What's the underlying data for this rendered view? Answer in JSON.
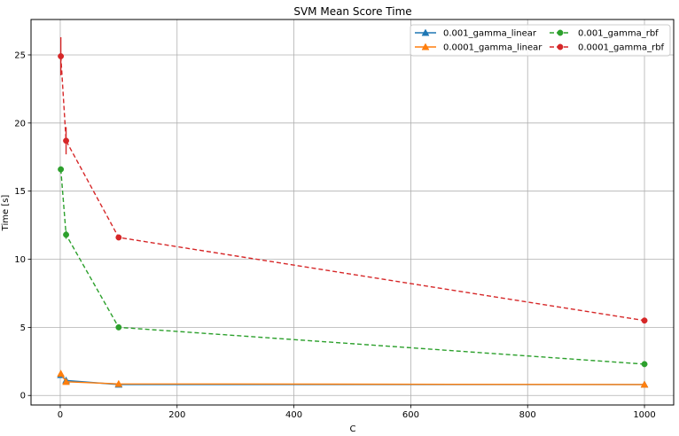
{
  "chart_data": {
    "type": "line",
    "title": "SVM Mean Score Time",
    "xlabel": "C",
    "ylabel": "Time [s]",
    "xlim": [
      -50,
      1050
    ],
    "ylim": [
      -0.7,
      27.6
    ],
    "xticks": [
      0,
      200,
      400,
      600,
      800,
      1000
    ],
    "yticks": [
      0,
      5,
      10,
      15,
      20,
      25
    ],
    "grid": true,
    "legend_position": "top-right",
    "x": [
      1,
      10,
      100,
      1000
    ],
    "series": [
      {
        "name": "0.001_gamma_linear",
        "color": "#1f77b4",
        "linestyle": "solid",
        "marker": "triangle",
        "values": [
          1.5,
          1.1,
          0.8,
          0.8
        ],
        "errors": [
          0.05,
          0.05,
          0.02,
          0.02
        ]
      },
      {
        "name": "0.0001_gamma_linear",
        "color": "#ff7f0e",
        "linestyle": "solid",
        "marker": "triangle",
        "values": [
          1.6,
          1.0,
          0.85,
          0.8
        ],
        "errors": [
          0.05,
          0.05,
          0.02,
          0.02
        ]
      },
      {
        "name": "0.001_gamma_rbf",
        "color": "#2ca02c",
        "linestyle": "dashed",
        "marker": "circle",
        "values": [
          16.6,
          11.8,
          5.0,
          2.3
        ],
        "errors": [
          0.2,
          0.3,
          0.1,
          0.1
        ]
      },
      {
        "name": "0.0001_gamma_rbf",
        "color": "#d62728",
        "linestyle": "dashed",
        "marker": "circle",
        "values": [
          24.9,
          18.7,
          11.6,
          5.5
        ],
        "errors": [
          1.4,
          1.0,
          0.1,
          0.1
        ]
      }
    ]
  }
}
